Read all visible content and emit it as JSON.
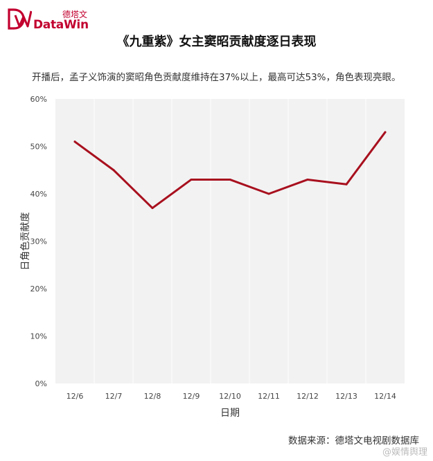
{
  "brand": {
    "name_cn": "德塔文",
    "name_en": "DataWin",
    "color": "#c2002f"
  },
  "watermark": "@娱情舆理",
  "source": "数据来源：德塔文电视剧数据库",
  "chart_data": {
    "type": "line",
    "title": "《九重紫》女主窦昭贡献度逐日表现",
    "subtitle": "开播后，孟子义饰演的窦昭角色贡献度维持在37%以上，最高可达53%，角色表现亮眼。",
    "xlabel": "日期",
    "ylabel": "日角色贡献度",
    "categories": [
      "12/6",
      "12/7",
      "12/8",
      "12/9",
      "12/10",
      "12/11",
      "12/12",
      "12/13",
      "12/14"
    ],
    "series": [
      {
        "values": [
          51,
          45,
          37,
          43,
          43,
          40,
          43,
          42,
          53
        ]
      }
    ],
    "ylim": [
      0,
      60
    ],
    "yticks": [
      "0%",
      "10%",
      "20%",
      "30%",
      "40%",
      "50%",
      "60%"
    ],
    "ytick_values": [
      0,
      10,
      20,
      30,
      40,
      50,
      60
    ],
    "grid": "vertical",
    "colors": {
      "line": "#a8101e",
      "plot_background": "#f2f2f2",
      "grid": "#ffffff"
    }
  }
}
